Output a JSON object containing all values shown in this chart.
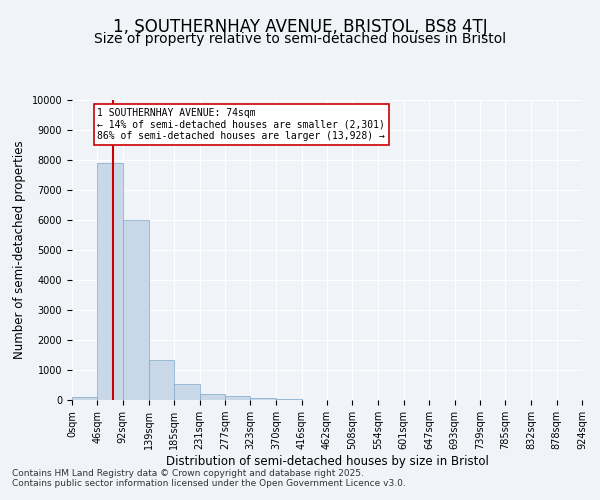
{
  "title1": "1, SOUTHERNHAY AVENUE, BRISTOL, BS8 4TJ",
  "title2": "Size of property relative to semi-detached houses in Bristol",
  "xlabel": "Distribution of semi-detached houses by size in Bristol",
  "ylabel": "Number of semi-detached properties",
  "bin_edges": [
    0,
    46,
    92,
    139,
    185,
    231,
    277,
    323,
    370,
    416,
    462,
    508,
    554,
    601,
    647,
    693,
    739,
    785,
    832,
    878,
    924
  ],
  "bar_heights": [
    100,
    7900,
    6000,
    1350,
    550,
    200,
    130,
    80,
    30,
    8,
    5,
    3,
    2,
    1,
    1,
    0,
    0,
    0,
    0,
    0
  ],
  "bar_color": "#c8d8e8",
  "bar_edgecolor": "#7fa8c8",
  "property_size": 74,
  "property_label": "1 SOUTHERNHAY AVENUE: 74sqm",
  "pct_smaller": 14,
  "pct_larger": 86,
  "n_smaller": 2301,
  "n_larger": 13928,
  "vline_color": "#cc0000",
  "annotation_box_edgecolor": "#cc0000",
  "ylim": [
    0,
    10000
  ],
  "yticks": [
    0,
    1000,
    2000,
    3000,
    4000,
    5000,
    6000,
    7000,
    8000,
    9000,
    10000
  ],
  "background_color": "#f0f4f8",
  "plot_bg_color": "#f0f4f8",
  "footer1": "Contains HM Land Registry data © Crown copyright and database right 2025.",
  "footer2": "Contains public sector information licensed under the Open Government Licence v3.0.",
  "title1_fontsize": 12,
  "title2_fontsize": 10,
  "xlabel_fontsize": 8.5,
  "ylabel_fontsize": 8.5,
  "tick_fontsize": 7,
  "footer_fontsize": 6.5
}
